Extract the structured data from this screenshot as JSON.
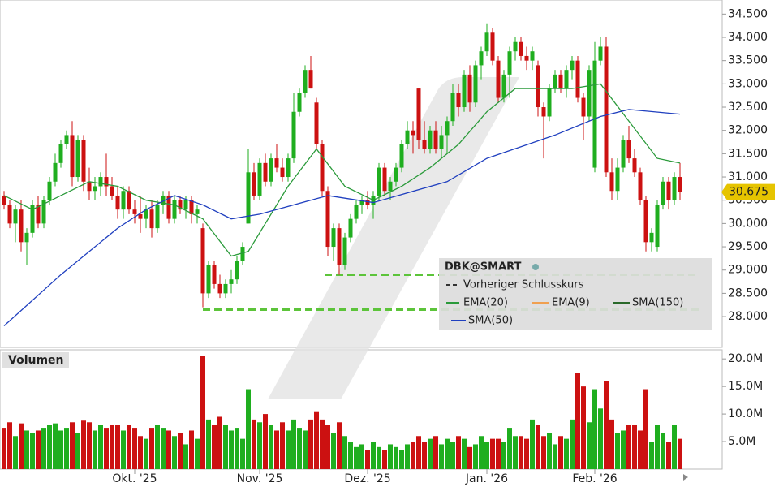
{
  "chart_data": {
    "type": "candlestick",
    "ylim": [
      27.6,
      34.75
    ],
    "yticks": [
      {
        "value": 28,
        "label": "28.000"
      },
      {
        "value": 28.5,
        "label": "28.500"
      },
      {
        "value": 29,
        "label": "29.000"
      },
      {
        "value": 29.5,
        "label": "29.500"
      },
      {
        "value": 30,
        "label": "30.000"
      },
      {
        "value": 30.5,
        "label": "30.500"
      },
      {
        "value": 31,
        "label": "31.000"
      },
      {
        "value": 31.5,
        "label": "31.500"
      },
      {
        "value": 32,
        "label": "32.000"
      },
      {
        "value": 32.5,
        "label": "32.500"
      },
      {
        "value": 33,
        "label": "33.000"
      },
      {
        "value": 33.5,
        "label": "33.500"
      },
      {
        "value": 34,
        "label": "34.000"
      },
      {
        "value": 34.5,
        "label": "34.500"
      }
    ],
    "up_color": "#1fae1f",
    "down_color": "#cc1111",
    "xticks": [
      {
        "value": 23,
        "label": "Okt. '25"
      },
      {
        "value": 45,
        "label": "Nov. '25"
      },
      {
        "value": 64,
        "label": "Dez. '25"
      },
      {
        "value": 85,
        "label": "Jan. '26"
      },
      {
        "value": 104,
        "label": "Feb. '26"
      }
    ],
    "ohlc": [
      [
        30.6,
        30.7,
        30.3,
        30.4
      ],
      [
        30.4,
        30.5,
        29.9,
        30.0
      ],
      [
        30.0,
        30.4,
        29.6,
        30.3
      ],
      [
        30.3,
        30.5,
        29.4,
        29.6
      ],
      [
        29.6,
        29.9,
        29.1,
        29.8
      ],
      [
        29.8,
        30.5,
        29.7,
        30.4
      ],
      [
        30.4,
        30.6,
        29.9,
        30.0
      ],
      [
        30.0,
        30.6,
        29.9,
        30.5
      ],
      [
        30.5,
        31.0,
        30.4,
        30.9
      ],
      [
        30.9,
        31.5,
        30.8,
        31.3
      ],
      [
        31.3,
        31.8,
        31.2,
        31.7
      ],
      [
        31.7,
        32.0,
        31.6,
        31.9
      ],
      [
        31.9,
        32.2,
        30.8,
        31.0
      ],
      [
        31.0,
        31.9,
        30.9,
        31.8
      ],
      [
        31.8,
        31.9,
        30.7,
        30.9
      ],
      [
        30.9,
        31.2,
        30.5,
        30.7
      ],
      [
        30.7,
        31.0,
        30.5,
        30.8
      ],
      [
        30.8,
        31.1,
        30.6,
        31.0
      ],
      [
        31.0,
        31.5,
        30.6,
        30.8
      ],
      [
        30.8,
        31.0,
        30.5,
        30.6
      ],
      [
        30.6,
        30.8,
        30.1,
        30.3
      ],
      [
        30.3,
        30.8,
        30.1,
        30.7
      ],
      [
        30.7,
        30.8,
        30.2,
        30.3
      ],
      [
        30.3,
        30.5,
        30.0,
        30.2
      ],
      [
        30.2,
        30.6,
        29.8,
        30.1
      ],
      [
        30.1,
        30.4,
        29.9,
        30.3
      ],
      [
        30.3,
        30.5,
        29.7,
        29.9
      ],
      [
        29.9,
        30.5,
        29.8,
        30.4
      ],
      [
        30.4,
        30.7,
        30.2,
        30.6
      ],
      [
        30.6,
        30.7,
        30.0,
        30.1
      ],
      [
        30.1,
        30.6,
        30.0,
        30.5
      ],
      [
        30.5,
        30.6,
        30.2,
        30.3
      ],
      [
        30.3,
        30.6,
        30.1,
        30.5
      ],
      [
        30.5,
        30.6,
        30.0,
        30.2
      ],
      [
        30.2,
        30.4,
        30.0,
        30.3
      ],
      [
        29.9,
        30.0,
        28.2,
        28.5
      ],
      [
        28.5,
        29.2,
        28.4,
        29.1
      ],
      [
        29.1,
        29.2,
        28.6,
        28.7
      ],
      [
        28.7,
        28.9,
        28.4,
        28.5
      ],
      [
        28.5,
        28.8,
        28.4,
        28.7
      ],
      [
        28.7,
        29.0,
        28.5,
        28.8
      ],
      [
        28.8,
        29.3,
        28.7,
        29.2
      ],
      [
        29.2,
        29.6,
        29.1,
        29.5
      ],
      [
        30.0,
        31.6,
        30.0,
        31.1
      ],
      [
        31.1,
        31.3,
        30.5,
        30.6
      ],
      [
        30.6,
        31.4,
        30.5,
        31.3
      ],
      [
        31.3,
        31.5,
        30.8,
        30.9
      ],
      [
        30.9,
        31.5,
        30.8,
        31.4
      ],
      [
        31.4,
        31.7,
        31.1,
        31.2
      ],
      [
        31.2,
        31.4,
        30.9,
        31.0
      ],
      [
        31.0,
        31.5,
        30.9,
        31.4
      ],
      [
        31.4,
        32.8,
        31.3,
        32.4
      ],
      [
        32.4,
        32.9,
        32.3,
        32.8
      ],
      [
        32.8,
        33.4,
        32.7,
        33.3
      ],
      [
        33.3,
        33.6,
        32.9,
        32.9
      ],
      [
        32.6,
        32.7,
        31.6,
        31.7
      ],
      [
        31.7,
        31.8,
        30.6,
        30.7
      ],
      [
        30.7,
        30.8,
        29.3,
        29.5
      ],
      [
        29.5,
        30.0,
        29.2,
        29.9
      ],
      [
        29.9,
        30.0,
        28.9,
        29.1
      ],
      [
        29.1,
        29.8,
        29.0,
        29.7
      ],
      [
        29.7,
        30.2,
        29.6,
        30.1
      ],
      [
        30.1,
        30.5,
        30.0,
        30.4
      ],
      [
        30.4,
        30.6,
        30.2,
        30.5
      ],
      [
        30.5,
        30.7,
        30.3,
        30.4
      ],
      [
        30.4,
        30.7,
        30.1,
        30.6
      ],
      [
        30.6,
        31.3,
        30.5,
        31.2
      ],
      [
        31.2,
        31.3,
        30.6,
        30.7
      ],
      [
        30.7,
        31.0,
        30.5,
        30.9
      ],
      [
        30.9,
        31.3,
        30.8,
        31.2
      ],
      [
        31.2,
        31.8,
        31.1,
        31.7
      ],
      [
        31.7,
        32.2,
        31.6,
        32.0
      ],
      [
        32.0,
        32.2,
        31.5,
        31.9
      ],
      [
        32.9,
        32.9,
        31.6,
        31.8
      ],
      [
        31.8,
        32.2,
        31.5,
        31.6
      ],
      [
        31.6,
        32.1,
        31.5,
        32.0
      ],
      [
        32.0,
        32.2,
        31.5,
        31.6
      ],
      [
        31.6,
        32.1,
        31.4,
        31.9
      ],
      [
        31.9,
        32.3,
        31.5,
        32.2
      ],
      [
        32.2,
        33.0,
        32.1,
        32.8
      ],
      [
        32.8,
        33.0,
        32.3,
        32.5
      ],
      [
        32.5,
        33.3,
        32.4,
        33.2
      ],
      [
        33.2,
        33.4,
        32.4,
        32.6
      ],
      [
        32.6,
        33.5,
        32.5,
        33.4
      ],
      [
        33.4,
        33.8,
        33.1,
        33.7
      ],
      [
        33.7,
        34.3,
        33.6,
        34.1
      ],
      [
        34.1,
        34.2,
        33.4,
        33.5
      ],
      [
        33.5,
        33.6,
        32.6,
        32.7
      ],
      [
        32.7,
        33.3,
        32.6,
        33.2
      ],
      [
        33.2,
        33.8,
        32.7,
        33.7
      ],
      [
        33.7,
        34.0,
        33.5,
        33.9
      ],
      [
        33.9,
        34.0,
        33.5,
        33.6
      ],
      [
        33.6,
        33.8,
        33.3,
        33.5
      ],
      [
        33.5,
        33.8,
        33.3,
        33.7
      ],
      [
        33.4,
        33.5,
        32.3,
        32.5
      ],
      [
        32.5,
        32.6,
        31.4,
        32.3
      ],
      [
        32.3,
        33.0,
        32.2,
        32.9
      ],
      [
        32.9,
        33.3,
        32.8,
        33.2
      ],
      [
        33.2,
        33.3,
        32.8,
        32.9
      ],
      [
        32.9,
        33.4,
        32.7,
        33.3
      ],
      [
        33.3,
        33.6,
        33.1,
        33.5
      ],
      [
        33.5,
        33.6,
        32.6,
        32.7
      ],
      [
        32.7,
        32.8,
        31.8,
        32.3
      ],
      [
        32.3,
        33.4,
        32.2,
        33.3
      ],
      [
        31.2,
        33.9,
        31.1,
        33.5
      ],
      [
        33.5,
        34.0,
        33.4,
        33.8
      ],
      [
        33.8,
        34.0,
        31.0,
        31.1
      ],
      [
        31.1,
        31.4,
        30.5,
        30.7
      ],
      [
        30.7,
        31.4,
        30.5,
        31.2
      ],
      [
        31.2,
        31.9,
        31.1,
        31.8
      ],
      [
        31.8,
        32.1,
        31.3,
        31.4
      ],
      [
        31.4,
        31.6,
        31.0,
        31.1
      ],
      [
        31.1,
        31.2,
        30.4,
        30.5
      ],
      [
        30.5,
        30.6,
        29.4,
        29.6
      ],
      [
        29.6,
        29.9,
        29.4,
        29.8
      ],
      [
        29.5,
        30.5,
        29.4,
        30.4
      ],
      [
        30.4,
        31.0,
        30.3,
        30.9
      ],
      [
        30.9,
        31.0,
        30.3,
        30.5
      ],
      [
        30.5,
        31.1,
        30.4,
        31.0
      ],
      [
        31.0,
        31.3,
        30.5,
        30.675
      ]
    ],
    "volume": {
      "title": "Volumen",
      "ylim": [
        0,
        21.5
      ],
      "yticks": [
        {
          "value": 5,
          "label": "5.0M"
        },
        {
          "value": 10,
          "label": "10.0M"
        },
        {
          "value": 15,
          "label": "15.0M"
        },
        {
          "value": 20,
          "label": "20.0M"
        }
      ],
      "values": [
        7.5,
        8.5,
        6,
        8.3,
        7,
        6.5,
        7,
        7.5,
        8,
        8.3,
        7,
        7.5,
        8.5,
        6.5,
        8.8,
        8.5,
        7,
        8,
        7.5,
        8,
        8,
        7,
        8,
        7.5,
        6,
        5.5,
        7.5,
        8,
        7.5,
        7,
        6,
        6.5,
        4.5,
        7,
        5.5,
        20.5,
        9,
        8,
        9.5,
        8,
        7,
        7.5,
        5.5,
        14.5,
        9,
        8.5,
        10,
        8,
        7,
        8.5,
        7,
        9,
        7.5,
        7,
        9,
        10.5,
        9,
        8,
        6.5,
        8.5,
        6,
        5,
        4,
        4.5,
        3.5,
        5,
        4,
        3.5,
        4.5,
        4,
        3.5,
        4.5,
        5,
        6,
        5,
        5.5,
        6,
        4.5,
        5.5,
        5,
        6,
        5.5,
        4,
        4.5,
        6,
        5,
        5.5,
        5.5,
        5,
        7.5,
        6,
        6,
        5.5,
        9,
        8,
        6,
        6.5,
        4.5,
        6,
        5.5,
        9,
        17.5,
        15,
        8.5,
        14.5,
        11,
        16,
        9,
        6.5,
        7,
        8,
        8,
        7,
        14.5,
        5,
        8,
        6.5,
        5,
        8,
        5.5
      ]
    },
    "lines": [
      {
        "name": "EMA(20)",
        "color": "#2a9a3a",
        "x": [
          0,
          5,
          10,
          15,
          20,
          25,
          30,
          35,
          40,
          43,
          45,
          50,
          55,
          60,
          65,
          70,
          75,
          80,
          85,
          90,
          95,
          100,
          105,
          110,
          115,
          119
        ],
        "values": [
          30.6,
          30.3,
          30.6,
          30.9,
          30.8,
          30.5,
          30.4,
          30.1,
          29.3,
          29.4,
          29.8,
          30.8,
          31.6,
          30.8,
          30.5,
          30.8,
          31.2,
          31.7,
          32.4,
          32.9,
          32.9,
          32.9,
          33.0,
          32.2,
          31.4,
          31.3
        ]
      },
      {
        "name": "SMA(50)",
        "color": "#1f3fbf",
        "x": [
          0,
          10,
          20,
          25,
          30,
          35,
          40,
          45,
          57,
          65,
          78,
          85,
          97,
          105,
          110,
          119
        ],
        "values": [
          27.8,
          28.9,
          29.9,
          30.3,
          30.6,
          30.4,
          30.1,
          30.2,
          30.6,
          30.45,
          30.9,
          31.4,
          31.9,
          32.3,
          32.45,
          32.35
        ]
      }
    ],
    "levels": {
      "color": "#5cc43a",
      "values": [
        28.9,
        28.15
      ]
    },
    "legend": {
      "title": "DBK@SMART",
      "previous_close": "Vorheriger Schlusskurs",
      "others": [
        "EMA(9)",
        "SMA(150)"
      ]
    }
  }
}
